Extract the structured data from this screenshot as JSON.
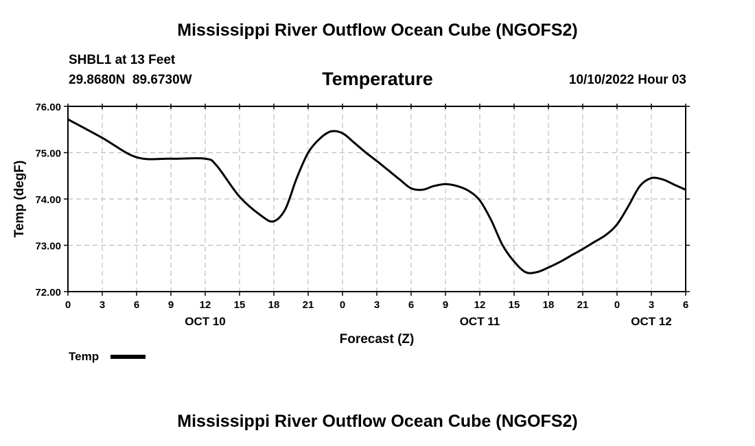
{
  "page": {
    "title": "Mississippi River Outflow Ocean Cube (NGOFS2)",
    "footer_title": "Mississippi River Outflow Ocean Cube (NGOFS2)",
    "station": "SHBL1 at 13 Feet",
    "coords": "29.8680N  89.6730W",
    "chart_title": "Temperature",
    "run_time": "10/10/2022 Hour 03"
  },
  "chart_data": {
    "type": "line",
    "title": "Temperature",
    "xlabel": "Forecast (Z)",
    "ylabel": "Temp (degF)",
    "xlim": [
      0,
      54
    ],
    "ylim": [
      72.0,
      76.0
    ],
    "grid": true,
    "y_ticks": [
      "72.00",
      "73.00",
      "74.00",
      "75.00",
      "76.00"
    ],
    "x_tick_labels": [
      "0",
      "3",
      "6",
      "9",
      "12",
      "15",
      "18",
      "21",
      "0",
      "3",
      "6",
      "9",
      "12",
      "15",
      "18",
      "21",
      "0",
      "3",
      "6"
    ],
    "date_labels": [
      {
        "label": "OCT 10",
        "hour": 12
      },
      {
        "label": "OCT 11",
        "hour": 36
      },
      {
        "label": "OCT 12",
        "hour": 51
      }
    ],
    "legend": {
      "label": "Temp",
      "position": "bottom-left"
    },
    "series": [
      {
        "name": "Temp",
        "color": "#000000",
        "x": [
          0,
          3,
          6,
          9,
          12,
          13,
          15,
          17,
          18,
          19,
          20,
          21,
          22,
          23,
          24,
          25,
          26,
          27,
          28,
          29,
          30,
          31,
          32,
          33,
          34,
          35,
          36,
          37,
          38,
          39,
          40,
          41,
          42,
          43,
          44,
          45,
          46,
          47,
          48,
          49,
          50,
          51,
          52,
          53,
          54
        ],
        "y": [
          75.72,
          75.32,
          74.9,
          74.87,
          74.87,
          74.72,
          74.05,
          73.62,
          73.52,
          73.78,
          74.45,
          75.0,
          75.3,
          75.46,
          75.42,
          75.22,
          75.01,
          74.82,
          74.62,
          74.42,
          74.23,
          74.2,
          74.28,
          74.32,
          74.28,
          74.18,
          73.97,
          73.54,
          73.0,
          72.65,
          72.42,
          72.42,
          72.52,
          72.64,
          72.78,
          72.92,
          73.07,
          73.22,
          73.45,
          73.85,
          74.28,
          74.45,
          74.42,
          74.31,
          74.2
        ]
      }
    ]
  }
}
